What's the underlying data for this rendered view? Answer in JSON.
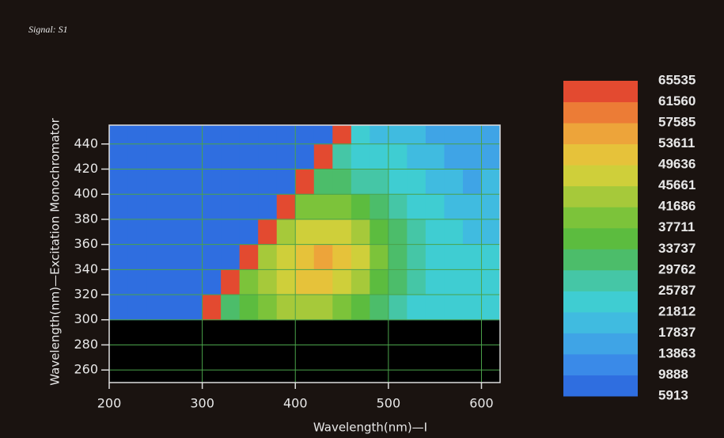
{
  "chart_data": {
    "type": "heatmap",
    "title": "Signal: S1",
    "x_label": "Wavelength(nm)—I",
    "y_label": "Wavelength(nm)—Excitation Monochromator",
    "x": [
      210,
      230,
      250,
      270,
      290,
      310,
      330,
      350,
      370,
      390,
      410,
      430,
      450,
      470,
      490,
      510,
      530,
      550,
      570,
      590,
      610
    ],
    "y": [
      310,
      330,
      350,
      370,
      390,
      410,
      430,
      450
    ],
    "z": [
      [
        5913,
        5913,
        5913,
        5913,
        5913,
        65535,
        29762,
        33737,
        37711,
        41686,
        41686,
        41686,
        37711,
        33737,
        29762,
        25787,
        21812,
        21812,
        21812,
        21812,
        21812
      ],
      [
        5913,
        5913,
        5913,
        5913,
        5913,
        5913,
        65535,
        37711,
        41686,
        45661,
        49636,
        49636,
        45661,
        41686,
        33737,
        29762,
        25787,
        21812,
        21812,
        21812,
        21812
      ],
      [
        5913,
        5913,
        5913,
        5913,
        5913,
        5913,
        5913,
        65535,
        41686,
        45661,
        49636,
        53611,
        49636,
        45661,
        37711,
        29762,
        25787,
        21812,
        21812,
        21812,
        21812
      ],
      [
        5913,
        5913,
        5913,
        5913,
        5913,
        5913,
        5913,
        5913,
        65535,
        41686,
        45661,
        45661,
        45661,
        41686,
        33737,
        29762,
        25787,
        21812,
        21812,
        17837,
        17837
      ],
      [
        5913,
        5913,
        5913,
        5913,
        5913,
        5913,
        5913,
        5913,
        5913,
        65535,
        37711,
        37711,
        37711,
        33737,
        29762,
        25787,
        21812,
        21812,
        17837,
        17837,
        17837
      ],
      [
        5913,
        5913,
        5913,
        5913,
        5913,
        5913,
        5913,
        5913,
        5913,
        5913,
        65535,
        29762,
        29762,
        25787,
        25787,
        21812,
        21812,
        17837,
        17837,
        13863,
        17837
      ],
      [
        5913,
        5913,
        5913,
        5913,
        5913,
        5913,
        5913,
        5913,
        5913,
        5913,
        5913,
        65535,
        25787,
        21812,
        21812,
        21812,
        17837,
        17837,
        13863,
        13863,
        13863
      ],
      [
        5913,
        5913,
        5913,
        5913,
        5913,
        5913,
        5913,
        5913,
        5913,
        5913,
        5913,
        5913,
        65535,
        21812,
        17837,
        17837,
        17837,
        13863,
        13863,
        13863,
        13863
      ]
    ],
    "xlim": [
      200,
      620
    ],
    "ylim": [
      250,
      455
    ],
    "xticks": [
      200,
      300,
      400,
      500,
      600
    ],
    "yticks": [
      260,
      280,
      300,
      320,
      340,
      360,
      380,
      400,
      420,
      440
    ],
    "grid": true,
    "colorbar": {
      "levels": [
        5913,
        9888,
        13863,
        17837,
        21812,
        25787,
        29762,
        33737,
        37711,
        41686,
        45661,
        49636,
        53611,
        57585,
        61560,
        65535
      ],
      "colors": [
        "#2f6ee0",
        "#3a8ae8",
        "#3fa4e6",
        "#40bbe0",
        "#3fcdd2",
        "#45c6a6",
        "#4cbd6a",
        "#5cbc3f",
        "#7cc33a",
        "#a6c93a",
        "#cfcf3a",
        "#e6c23a",
        "#eda43a",
        "#ec7c36",
        "#e34a30"
      ]
    }
  }
}
